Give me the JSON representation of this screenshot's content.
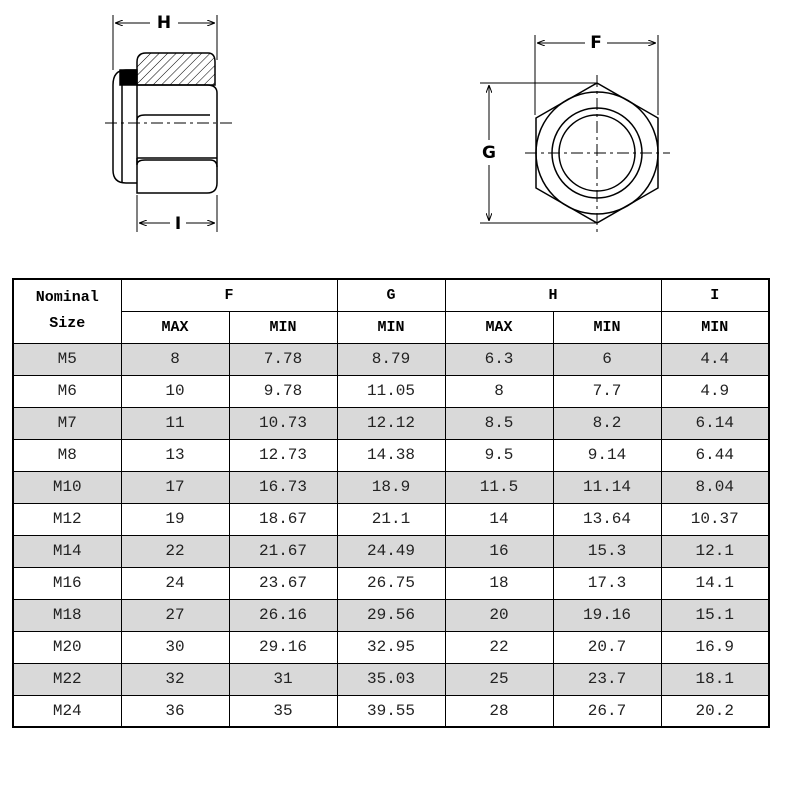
{
  "diagram": {
    "side_view": {
      "width_label": "H",
      "insert_label": "I"
    },
    "top_view": {
      "width_label": "F",
      "height_label": "G"
    }
  },
  "table": {
    "columns": [
      {
        "label": "Nominal Size"
      },
      {
        "label": "F",
        "sub": [
          "MAX",
          "MIN"
        ]
      },
      {
        "label": "G",
        "sub": [
          "MIN"
        ]
      },
      {
        "label": "H",
        "sub": [
          "MAX",
          "MIN"
        ]
      },
      {
        "label": "I",
        "sub": [
          "MIN"
        ]
      }
    ],
    "rows": [
      [
        "M5",
        "8",
        "7.78",
        "8.79",
        "6.3",
        "6",
        "4.4"
      ],
      [
        "M6",
        "10",
        "9.78",
        "11.05",
        "8",
        "7.7",
        "4.9"
      ],
      [
        "M7",
        "11",
        "10.73",
        "12.12",
        "8.5",
        "8.2",
        "6.14"
      ],
      [
        "M8",
        "13",
        "12.73",
        "14.38",
        "9.5",
        "9.14",
        "6.44"
      ],
      [
        "M10",
        "17",
        "16.73",
        "18.9",
        "11.5",
        "11.14",
        "8.04"
      ],
      [
        "M12",
        "19",
        "18.67",
        "21.1",
        "14",
        "13.64",
        "10.37"
      ],
      [
        "M14",
        "22",
        "21.67",
        "24.49",
        "16",
        "15.3",
        "12.1"
      ],
      [
        "M16",
        "24",
        "23.67",
        "26.75",
        "18",
        "17.3",
        "14.1"
      ],
      [
        "M18",
        "27",
        "26.16",
        "29.56",
        "20",
        "19.16",
        "15.1"
      ],
      [
        "M20",
        "30",
        "29.16",
        "32.95",
        "22",
        "20.7",
        "16.9"
      ],
      [
        "M22",
        "32",
        "31",
        "35.03",
        "25",
        "23.7",
        "18.1"
      ],
      [
        "M24",
        "36",
        "35",
        "39.55",
        "28",
        "26.7",
        "20.2"
      ]
    ]
  }
}
